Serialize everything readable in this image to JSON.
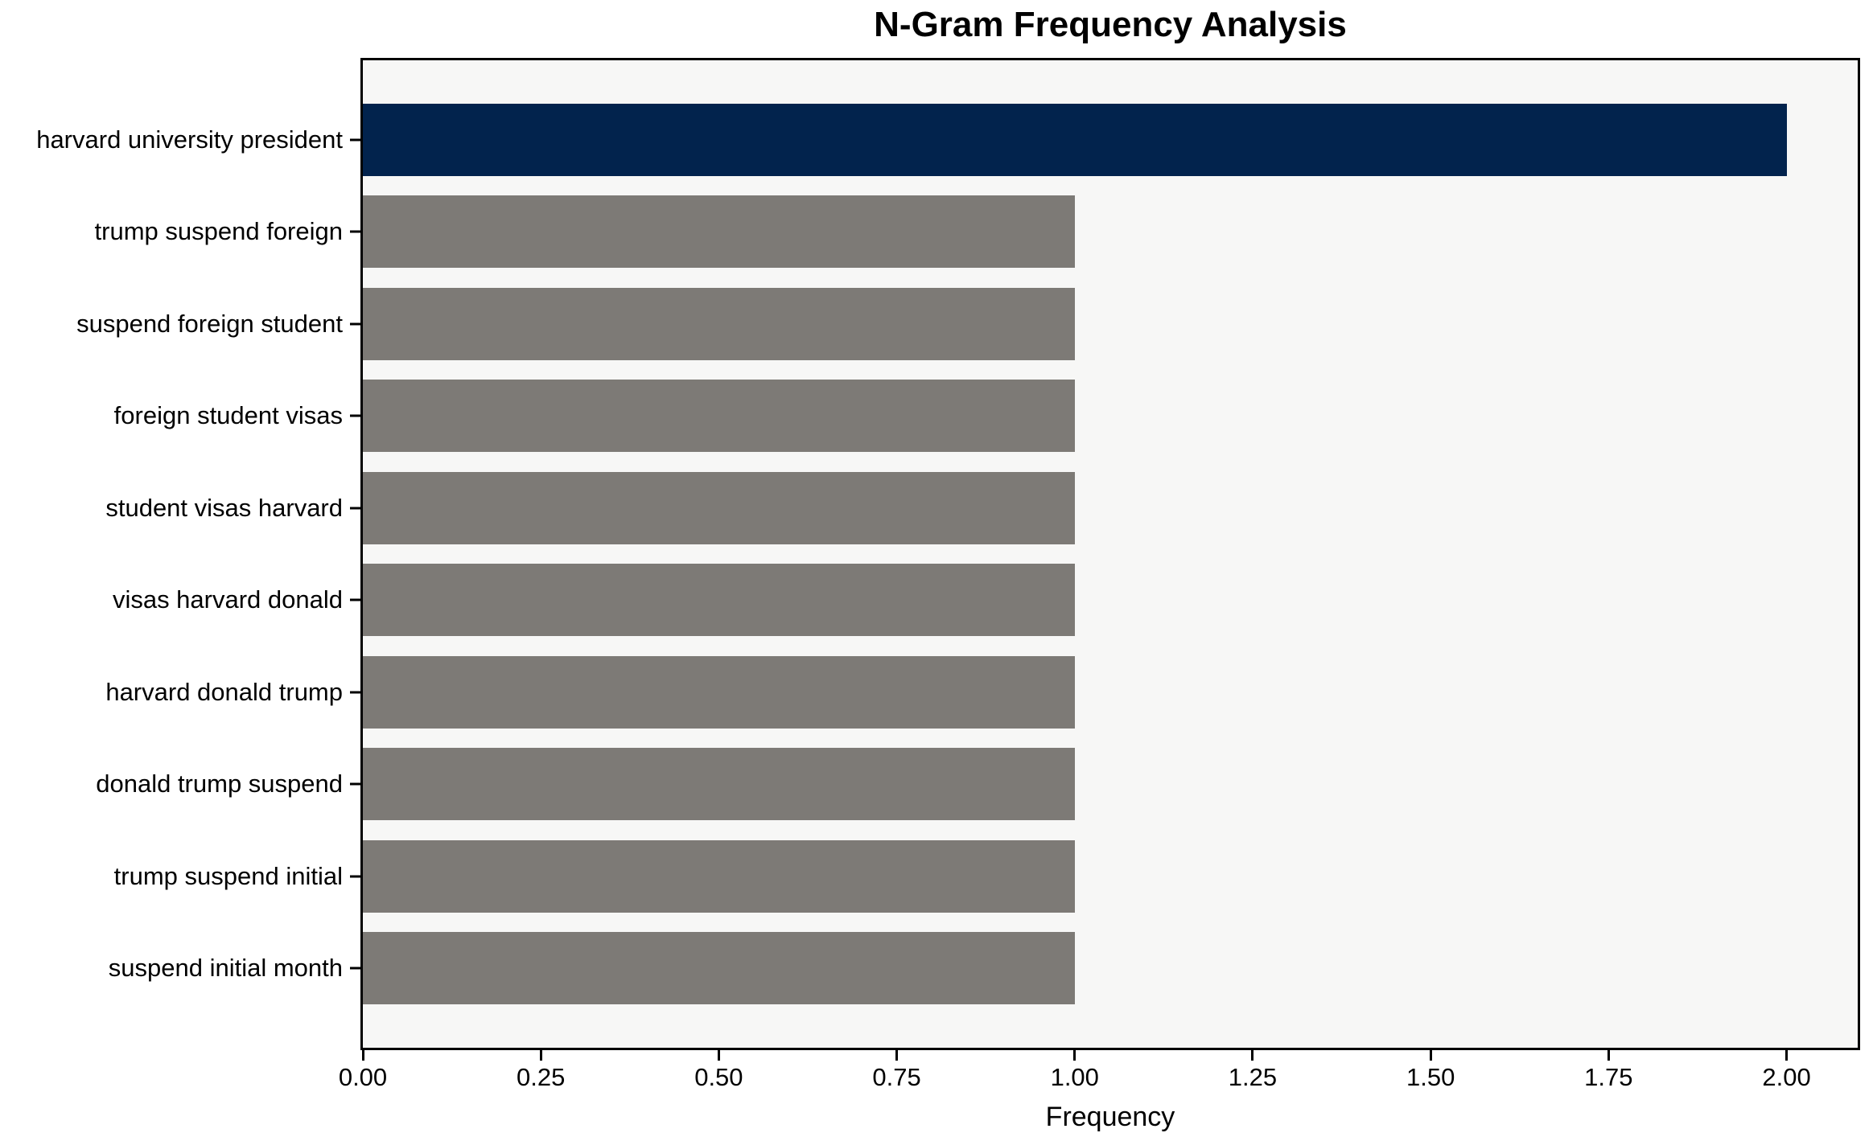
{
  "chart_data": {
    "type": "bar",
    "orientation": "horizontal",
    "title": "N-Gram Frequency Analysis",
    "xlabel": "Frequency",
    "ylabel": "",
    "categories": [
      "harvard university president",
      "trump suspend foreign",
      "suspend foreign student",
      "foreign student visas",
      "student visas harvard",
      "visas harvard donald",
      "harvard donald trump",
      "donald trump suspend",
      "trump suspend initial",
      "suspend initial month"
    ],
    "values": [
      2,
      1,
      1,
      1,
      1,
      1,
      1,
      1,
      1,
      1
    ],
    "xlim": [
      0,
      2.1
    ],
    "xticks": [
      "0.00",
      "0.25",
      "0.50",
      "0.75",
      "1.00",
      "1.25",
      "1.50",
      "1.75",
      "2.00"
    ],
    "xtick_values": [
      0,
      0.25,
      0.5,
      0.75,
      1.0,
      1.25,
      1.5,
      1.75,
      2.0
    ],
    "grid": false,
    "legend": "none",
    "bar_colors": [
      "#02234D",
      "#7D7A76",
      "#7D7A76",
      "#7D7A76",
      "#7D7A76",
      "#7D7A76",
      "#7D7A76",
      "#7D7A76",
      "#7D7A76",
      "#7D7A76"
    ],
    "colors": {
      "highlight_bar": "#02234D",
      "default_bar": "#7D7A76",
      "plot_background": "#F7F7F6",
      "figure_background": "#FFFFFF",
      "axis": "#000000",
      "text": "#000000"
    }
  }
}
